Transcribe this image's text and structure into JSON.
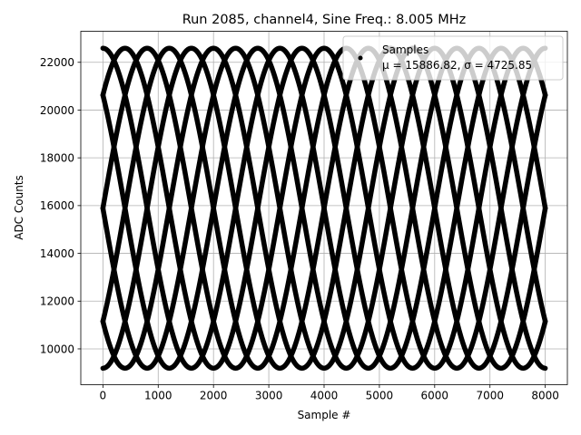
{
  "chart_data": {
    "type": "scatter",
    "title": "Run 2085, channel4, Sine Freq.: 8.005 MHz",
    "xlabel": "Sample #",
    "ylabel": "ADC Counts",
    "xlim": [
      -400,
      8400
    ],
    "ylim": [
      8500,
      23300
    ],
    "xticks": [
      0,
      1000,
      2000,
      3000,
      4000,
      5000,
      6000,
      7000,
      8000
    ],
    "yticks": [
      10000,
      12000,
      14000,
      16000,
      18000,
      20000,
      22000
    ],
    "grid": true,
    "legend": {
      "placement": "top-right",
      "entries": [
        {
          "label": "Samples",
          "stats": "μ = 15886.82, σ = 4725.85"
        }
      ]
    },
    "series": [
      {
        "name": "Samples",
        "marker_color": "#000000",
        "n_samples": 8000,
        "model": {
          "offset": 15890,
          "amplitude": 6700,
          "period_samples": 3200,
          "phases_deg": [
            135,
            225,
            315,
            45,
            90,
            270,
            0,
            180
          ]
        }
      }
    ]
  }
}
